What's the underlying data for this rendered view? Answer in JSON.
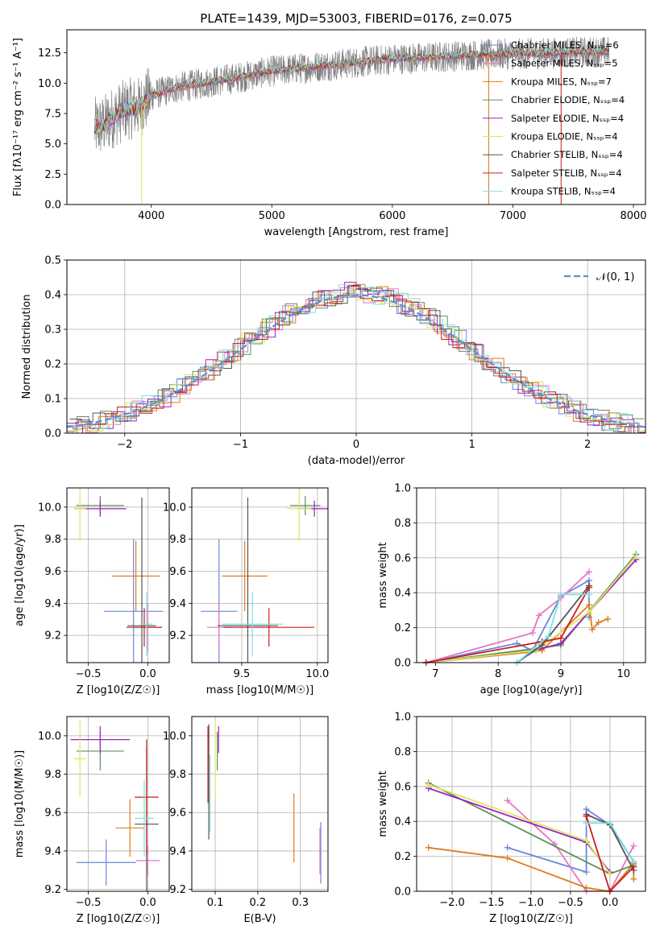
{
  "figure": {
    "title": "PLATE=1439, MJD=53003, FIBERID=0176, z=0.075"
  },
  "colors": {
    "Chabrier MILES": "#6688dd",
    "Salpeter MILES": "#e377c2",
    "Kroupa MILES": "#e07b1e",
    "Chabrier ELODIE": "#5c8f5c",
    "Salpeter ELODIE": "#a020c0",
    "Kroupa ELODIE": "#d9e860",
    "Chabrier STELIB": "#555555",
    "Salpeter STELIB": "#c81e1e",
    "Kroupa STELIB": "#80e0e0",
    "data": "#808080",
    "normal": "#5b8fd9"
  },
  "chart_data": [
    {
      "id": "spectrum",
      "type": "line",
      "title": "PLATE=1439, MJD=53003, FIBERID=0176, z=0.075",
      "xlabel": "wavelength [Angstrom, rest frame]",
      "ylabel": "Flux [fλ10⁻¹⁷ erg cm⁻² s⁻¹ A⁻¹]",
      "xlim": [
        3300,
        8100
      ],
      "ylim": [
        0,
        14.4
      ],
      "xticks": [
        4000,
        5000,
        6000,
        7000,
        8000
      ],
      "yticks": [
        0.0,
        2.5,
        5.0,
        7.5,
        10.0,
        12.5
      ],
      "grid": false,
      "legend_position": "top-right",
      "legend": [
        "Chabrier MILES, N_SSP=6",
        "Salpeter MILES, N_SSP=5",
        "Kroupa MILES, N_SSP=7",
        "Chabrier ELODIE, N_SSP=4",
        "Salpeter ELODIE, N_SSP=4",
        "Kroupa ELODIE, N_SSP=4",
        "Chabrier STELIB, N_SSP=4",
        "Salpeter STELIB, N_SSP=4",
        "Kroupa STELIB, N_SSP=4"
      ],
      "continuum": {
        "x": [
          3500,
          3600,
          3700,
          3800,
          3900,
          4000,
          4200,
          4500,
          4800,
          5000,
          5200,
          5500,
          5800,
          6000,
          6300,
          6600,
          7000,
          7400,
          7800
        ],
        "y": [
          6.2,
          6.5,
          7.3,
          7.9,
          8.0,
          9.0,
          9.6,
          10.1,
          10.6,
          11.0,
          11.2,
          11.5,
          11.8,
          12.0,
          12.1,
          12.3,
          12.4,
          12.5,
          12.6
        ]
      },
      "spikes": [
        {
          "x": 3920,
          "y": 0.0
        },
        {
          "x": 6800,
          "y": 0.0
        },
        {
          "x": 7400,
          "y": 0.0
        }
      ]
    },
    {
      "id": "residuals",
      "type": "step-histogram",
      "xlabel": "(data-model)/error",
      "ylabel": "Normed distribution",
      "xlim": [
        -2.5,
        2.5
      ],
      "ylim": [
        0,
        0.5
      ],
      "xticks": [
        -2,
        -1,
        0,
        1,
        2
      ],
      "xtick_labels": [
        "−2",
        "−1",
        "0",
        "1",
        "2"
      ],
      "yticks": [
        0.0,
        0.1,
        0.2,
        0.3,
        0.4,
        0.5
      ],
      "grid": true,
      "legend": [
        "𝒩(0, 1)"
      ],
      "legend_position": "top-right",
      "bin_width": 0.1,
      "series_names": [
        "Chabrier MILES",
        "Salpeter MILES",
        "Kroupa MILES",
        "Chabrier ELODIE",
        "Salpeter ELODIE",
        "Kroupa ELODIE",
        "Chabrier STELIB",
        "Salpeter STELIB",
        "Kroupa STELIB"
      ]
    },
    {
      "id": "age_vs_Z",
      "type": "errorbar",
      "xlabel": "Z [log10(Z/Z☉)]",
      "ylabel": "age  [log10(age/yr)]",
      "xlim": [
        -0.68,
        0.18
      ],
      "ylim": [
        9.03,
        10.12
      ],
      "xticks": [
        -0.5,
        0.0
      ],
      "xtick_labels": [
        "−0.5",
        "0.0"
      ],
      "yticks": [
        9.2,
        9.4,
        9.6,
        9.8,
        10.0
      ],
      "grid": true,
      "points": [
        {
          "series": "Chabrier MILES",
          "x": -0.12,
          "xerr": 0.25,
          "y": 9.35,
          "yerr": 0.45
        },
        {
          "series": "Salpeter MILES",
          "x": 0.0,
          "xerr": 0.12,
          "y": 9.25,
          "yerr": 0.15
        },
        {
          "series": "Kroupa MILES",
          "x": -0.1,
          "xerr": 0.2,
          "y": 9.57,
          "yerr": 0.22
        },
        {
          "series": "Chabrier ELODIE",
          "x": -0.4,
          "xerr": 0.2,
          "y": 10.01,
          "yerr": 0.06
        },
        {
          "series": "Salpeter ELODIE",
          "x": -0.4,
          "xerr": 0.22,
          "y": 9.99,
          "yerr": 0.05
        },
        {
          "series": "Kroupa ELODIE",
          "x": -0.57,
          "xerr": 0.05,
          "y": 9.99,
          "yerr": 0.2
        },
        {
          "series": "Chabrier STELIB",
          "x": -0.05,
          "xerr": 0.12,
          "y": 9.26,
          "yerr": 0.8
        },
        {
          "series": "Salpeter STELIB",
          "x": -0.03,
          "xerr": 0.15,
          "y": 9.25,
          "yerr": 0.12
        },
        {
          "series": "Kroupa STELIB",
          "x": -0.01,
          "xerr": 0.05,
          "y": 9.27,
          "yerr": 0.2
        }
      ]
    },
    {
      "id": "age_vs_mass",
      "type": "errorbar",
      "xlabel": "mass [log10(M/M☉)]",
      "ylabel": "",
      "xlim": [
        9.17,
        10.07
      ],
      "ylim": [
        9.03,
        10.12
      ],
      "xticks": [
        9.5,
        10.0
      ],
      "yticks": [
        9.2,
        9.4,
        9.6,
        9.8,
        10.0
      ],
      "grid": true,
      "points": [
        {
          "series": "Chabrier MILES",
          "x": 9.35,
          "xerr": 0.12,
          "y": 9.35,
          "yerr": 0.45
        },
        {
          "series": "Salpeter MILES",
          "x": 9.35,
          "xerr": 0.08,
          "y": 9.25,
          "yerr": 0.15
        },
        {
          "series": "Kroupa MILES",
          "x": 9.52,
          "xerr": 0.15,
          "y": 9.57,
          "yerr": 0.22
        },
        {
          "series": "Chabrier ELODIE",
          "x": 9.92,
          "xerr": 0.1,
          "y": 10.01,
          "yerr": 0.06
        },
        {
          "series": "Salpeter ELODIE",
          "x": 9.98,
          "xerr": 0.1,
          "y": 9.99,
          "yerr": 0.05
        },
        {
          "series": "Kroupa ELODIE",
          "x": 9.88,
          "xerr": 0.08,
          "y": 9.99,
          "yerr": 0.2
        },
        {
          "series": "Chabrier STELIB",
          "x": 9.54,
          "xerr": 0.2,
          "y": 9.26,
          "yerr": 0.8
        },
        {
          "series": "Salpeter STELIB",
          "x": 9.68,
          "xerr": 0.3,
          "y": 9.25,
          "yerr": 0.12
        },
        {
          "series": "Kroupa STELIB",
          "x": 9.57,
          "xerr": 0.2,
          "y": 9.27,
          "yerr": 0.2
        }
      ]
    },
    {
      "id": "mass_weight_vs_age",
      "type": "line",
      "xlabel": "age  [log10(age/yr)]",
      "ylabel": "mass weight",
      "xlim": [
        6.7,
        10.35
      ],
      "ylim": [
        0,
        1
      ],
      "xticks": [
        7,
        8,
        9,
        10
      ],
      "yticks": [
        0.0,
        0.2,
        0.4,
        0.6,
        0.8,
        1.0
      ],
      "grid": true,
      "series": [
        {
          "name": "Chabrier MILES",
          "x": [
            6.85,
            8.3,
            8.55,
            9.0,
            9.45,
            9.45
          ],
          "y": [
            0.0,
            0.11,
            0.07,
            0.38,
            0.47,
            0.26
          ]
        },
        {
          "name": "Salpeter MILES",
          "x": [
            6.85,
            8.55,
            8.65,
            9.0,
            9.45
          ],
          "y": [
            0.0,
            0.17,
            0.27,
            0.37,
            0.52
          ]
        },
        {
          "name": "Kroupa MILES",
          "x": [
            6.85,
            8.5,
            8.7,
            9.45,
            9.5,
            9.6,
            9.75
          ],
          "y": [
            0.0,
            0.06,
            0.07,
            0.33,
            0.19,
            0.23,
            0.25
          ]
        },
        {
          "name": "Chabrier ELODIE",
          "x": [
            6.85,
            8.6,
            9.0,
            10.2
          ],
          "y": [
            0.0,
            0.08,
            0.1,
            0.62
          ]
        },
        {
          "name": "Salpeter ELODIE",
          "x": [
            6.85,
            8.6,
            9.0,
            10.2
          ],
          "y": [
            0.0,
            0.07,
            0.11,
            0.59
          ]
        },
        {
          "name": "Kroupa ELODIE",
          "x": [
            6.85,
            8.6,
            9.45,
            10.2
          ],
          "y": [
            0.0,
            0.07,
            0.29,
            0.61
          ]
        },
        {
          "name": "Chabrier STELIB",
          "x": [
            8.3,
            8.7,
            9.45,
            9.45
          ],
          "y": [
            0.0,
            0.1,
            0.44,
            0.44
          ]
        },
        {
          "name": "Salpeter STELIB",
          "x": [
            6.85,
            8.7,
            9.0,
            9.45
          ],
          "y": [
            0.0,
            0.12,
            0.14,
            0.43
          ]
        },
        {
          "name": "Kroupa STELIB",
          "x": [
            8.3,
            8.8,
            9.0,
            9.45
          ],
          "y": [
            0.0,
            0.15,
            0.39,
            0.39
          ]
        }
      ]
    },
    {
      "id": "mass_vs_Z",
      "type": "errorbar",
      "xlabel": "Z [log10(Z/Z☉)]",
      "ylabel": "mass [log10(M/M☉)]",
      "xlim": [
        -0.68,
        0.18
      ],
      "ylim": [
        9.19,
        10.1
      ],
      "xticks": [
        -0.5,
        0.0
      ],
      "xtick_labels": [
        "−0.5",
        "0.0"
      ],
      "yticks": [
        9.2,
        9.4,
        9.6,
        9.8,
        10.0
      ],
      "grid": true,
      "points": [
        {
          "series": "Chabrier MILES",
          "x": -0.35,
          "xerr": 0.25,
          "y": 9.34,
          "yerr": 0.12
        },
        {
          "series": "Salpeter MILES",
          "x": 0.0,
          "xerr": 0.1,
          "y": 9.35,
          "yerr": 0.08
        },
        {
          "series": "Kroupa MILES",
          "x": -0.15,
          "xerr": 0.12,
          "y": 9.52,
          "yerr": 0.15
        },
        {
          "series": "Chabrier ELODIE",
          "x": -0.4,
          "xerr": 0.2,
          "y": 9.92,
          "yerr": 0.1
        },
        {
          "series": "Salpeter ELODIE",
          "x": -0.4,
          "xerr": 0.25,
          "y": 9.98,
          "yerr": 0.07
        },
        {
          "series": "Kroupa ELODIE",
          "x": -0.57,
          "xerr": 0.05,
          "y": 9.88,
          "yerr": 0.2
        },
        {
          "series": "Chabrier STELIB",
          "x": -0.01,
          "xerr": 0.1,
          "y": 9.54,
          "yerr": 0.4
        },
        {
          "series": "Salpeter STELIB",
          "x": -0.01,
          "xerr": 0.1,
          "y": 9.68,
          "yerr": 0.3
        },
        {
          "series": "Kroupa STELIB",
          "x": -0.03,
          "xerr": 0.08,
          "y": 9.57,
          "yerr": 0.2
        }
      ]
    },
    {
      "id": "mass_vs_EBV",
      "type": "errorbar",
      "xlabel": "E(B-V)",
      "ylabel": "",
      "xlim": [
        0.045,
        0.365
      ],
      "ylim": [
        9.19,
        10.1
      ],
      "xticks": [
        0.1,
        0.2,
        0.3
      ],
      "yticks": [
        9.2,
        9.4,
        9.6,
        9.8,
        10.0
      ],
      "grid": true,
      "points": [
        {
          "series": "Chabrier MILES",
          "x": 0.348,
          "xerr": 0.0,
          "y": 9.39,
          "yerr": 0.16
        },
        {
          "series": "Salpeter MILES",
          "x": 0.346,
          "xerr": 0.0,
          "y": 9.4,
          "yerr": 0.12
        },
        {
          "series": "Kroupa MILES",
          "x": 0.285,
          "xerr": 0.0,
          "y": 9.52,
          "yerr": 0.18
        },
        {
          "series": "Chabrier ELODIE",
          "x": 0.105,
          "xerr": 0.0,
          "y": 9.92,
          "yerr": 0.1
        },
        {
          "series": "Salpeter ELODIE",
          "x": 0.108,
          "xerr": 0.0,
          "y": 9.98,
          "yerr": 0.07
        },
        {
          "series": "Kroupa ELODIE",
          "x": 0.1,
          "xerr": 0.0,
          "y": 9.88,
          "yerr": 0.2
        },
        {
          "series": "Chabrier STELIB",
          "x": 0.085,
          "xerr": 0.0,
          "y": 9.76,
          "yerr": 0.3
        },
        {
          "series": "Salpeter STELIB",
          "x": 0.083,
          "xerr": 0.0,
          "y": 9.85,
          "yerr": 0.2
        },
        {
          "series": "Kroupa STELIB",
          "x": 0.088,
          "xerr": 0.0,
          "y": 9.7,
          "yerr": 0.2
        }
      ]
    },
    {
      "id": "mass_weight_vs_Z",
      "type": "line",
      "xlabel": "Z [log10(Z/Z☉)]",
      "ylabel": "mass weight",
      "xlim": [
        -2.45,
        0.45
      ],
      "ylim": [
        0,
        1
      ],
      "xticks": [
        -2.0,
        -1.5,
        -1.0,
        -0.5,
        0.0
      ],
      "xtick_labels": [
        "−2.0",
        "−1.5",
        "−1.0",
        "−0.5",
        "0.0"
      ],
      "yticks": [
        0.0,
        0.2,
        0.4,
        0.6,
        0.8,
        1.0
      ],
      "grid": true,
      "series": [
        {
          "name": "Chabrier MILES",
          "x": [
            -1.3,
            -0.3,
            -0.3,
            0.0,
            0.3
          ],
          "y": [
            0.25,
            0.11,
            0.47,
            0.38,
            0.17
          ]
        },
        {
          "name": "Salpeter MILES",
          "x": [
            -1.3,
            -0.7,
            -0.3,
            0.0,
            0.3
          ],
          "y": [
            0.52,
            0.27,
            0.0,
            0.0,
            0.26
          ]
        },
        {
          "name": "Kroupa MILES",
          "x": [
            -2.3,
            -1.3,
            -0.3,
            0.0,
            0.3,
            0.3
          ],
          "y": [
            0.25,
            0.19,
            0.02,
            0.0,
            0.16,
            0.07
          ]
        },
        {
          "name": "Chabrier ELODIE",
          "x": [
            -2.3,
            0.0,
            0.3
          ],
          "y": [
            0.62,
            0.1,
            0.15
          ]
        },
        {
          "name": "Salpeter ELODIE",
          "x": [
            -2.3,
            -0.3,
            0.0
          ],
          "y": [
            0.59,
            0.28,
            0.11
          ]
        },
        {
          "name": "Kroupa ELODIE",
          "x": [
            -2.3,
            -0.3,
            0.0
          ],
          "y": [
            0.61,
            0.29,
            0.1
          ]
        },
        {
          "name": "Chabrier STELIB",
          "x": [
            -0.3,
            0.0,
            0.3
          ],
          "y": [
            0.44,
            0.38,
            0.12
          ]
        },
        {
          "name": "Salpeter STELIB",
          "x": [
            -0.3,
            0.0,
            0.3
          ],
          "y": [
            0.43,
            0.0,
            0.14
          ]
        },
        {
          "name": "Kroupa STELIB",
          "x": [
            -0.3,
            0.0,
            0.3
          ],
          "y": [
            0.39,
            0.39,
            0.17
          ]
        }
      ]
    }
  ]
}
